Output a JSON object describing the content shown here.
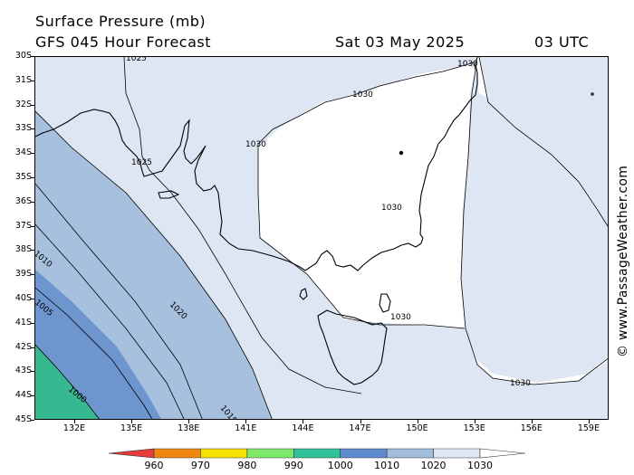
{
  "title": {
    "line1": "Surface Pressure (mb)",
    "line2_left": "GFS 045 Hour Forecast",
    "line2_date": "Sat 03 May 2025",
    "line2_time": "03 UTC"
  },
  "credit": "© www.PassageWeather.com",
  "map": {
    "lat_labels": [
      "30S",
      "31S",
      "32S",
      "33S",
      "34S",
      "35S",
      "36S",
      "37S",
      "38S",
      "39S",
      "40S",
      "41S",
      "42S",
      "43S",
      "44S",
      "45S"
    ],
    "lon_labels": [
      "132E",
      "135E",
      "138E",
      "141E",
      "144E",
      "147E",
      "150E",
      "153E",
      "156E",
      "159E"
    ],
    "contour_labels": {
      "c1030_a": "1030",
      "c1030_b": "1030",
      "c1030_c": "1030",
      "c1030_d": "1030",
      "c1030_e": "1030",
      "c1030_f": "1030",
      "c1025_a": "1025",
      "c1025_b": "1025",
      "c1020": "1020",
      "c1015": "1015",
      "c1010": "1010",
      "c1005": "1005",
      "c1000": "1000"
    },
    "colors": {
      "bg_1030plus": "#ffffff",
      "band_1020_1030": "#dde6f2",
      "band_1015_1020": "#a7c0de",
      "band_1005_1010": "#6d96cf",
      "band_1000_1005": "#5e8acb",
      "band_below_1000": "#36b890",
      "land_line": "#000000"
    }
  },
  "legend": {
    "labels": [
      "960",
      "970",
      "980",
      "990",
      "1000",
      "1010",
      "1020",
      "1030"
    ],
    "colors": [
      "#e83b3b",
      "#f2870f",
      "#f6e100",
      "#7fe96b",
      "#2fc197",
      "#5f8bd1",
      "#a3bddf",
      "#dfe7f3",
      "#ffffff"
    ]
  }
}
